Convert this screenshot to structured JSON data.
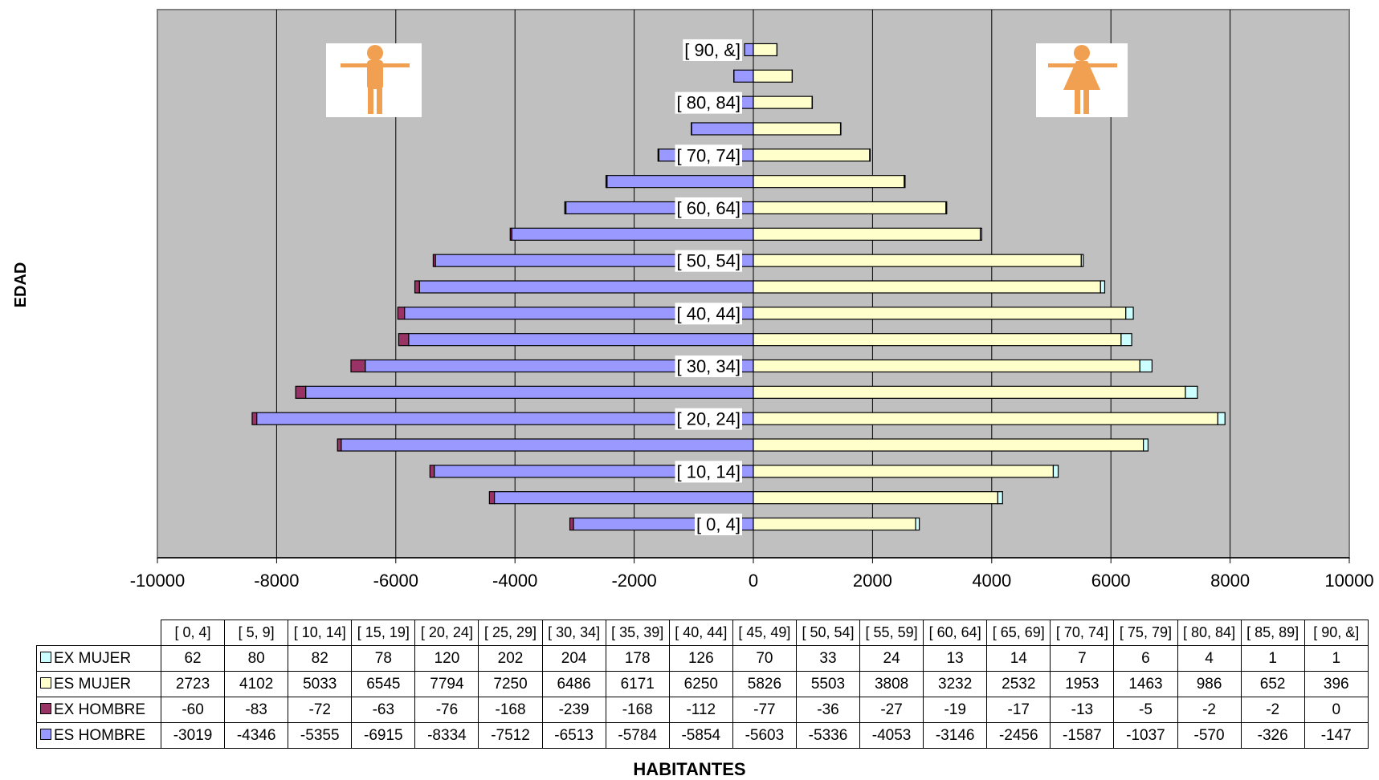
{
  "chart_data": {
    "type": "bar",
    "orientation": "horizontal",
    "stacked": true,
    "xlabel": "HABITANTES",
    "ylabel": "EDAD",
    "xlim": [
      -10000,
      10000
    ],
    "x_ticks": [
      "-10000",
      "-8000",
      "-6000",
      "-4000",
      "-2000",
      "0",
      "2000",
      "4000",
      "6000",
      "8000",
      "10000"
    ],
    "grid": true,
    "legend": "in data table, left",
    "categories": [
      "[ 0,  4]",
      "[ 5,  9]",
      "[ 10, 14]",
      "[ 15, 19]",
      "[ 20, 24]",
      "[ 25, 29]",
      "[ 30, 34]",
      "[ 35, 39]",
      "[ 40, 44]",
      "[ 45, 49]",
      "[ 50, 54]",
      "[ 55, 59]",
      "[ 60, 64]",
      "[ 65, 69]",
      "[ 70, 74]",
      "[ 75, 79]",
      "[ 80, 84]",
      "[ 85, 89]",
      "[ 90,  &]"
    ],
    "bar_labels": [
      "[  0,  4]",
      "",
      "[ 10, 14]",
      "",
      "[ 20, 24]",
      "",
      "[ 30, 34]",
      "",
      "[ 40, 44]",
      "",
      "[ 50, 54]",
      "",
      "[ 60, 64]",
      "",
      "[ 70, 74]",
      "",
      "[ 80, 84]",
      "",
      "[ 90,  &]"
    ],
    "series": [
      {
        "name": "EX MUJER",
        "color": "#ccffff",
        "values": [
          62,
          80,
          82,
          78,
          120,
          202,
          204,
          178,
          126,
          70,
          33,
          24,
          13,
          14,
          7,
          6,
          4,
          1,
          1
        ]
      },
      {
        "name": "ES MUJER",
        "color": "#ffffcc",
        "values": [
          2723,
          4102,
          5033,
          6545,
          7794,
          7250,
          6486,
          6171,
          6250,
          5826,
          5503,
          3808,
          3232,
          2532,
          1953,
          1463,
          986,
          652,
          396
        ]
      },
      {
        "name": "EX HOMBRE",
        "color": "#993366",
        "values": [
          -60,
          -83,
          -72,
          -63,
          -76,
          -168,
          -239,
          -168,
          -112,
          -77,
          -36,
          -27,
          -19,
          -17,
          -13,
          -5,
          -2,
          -2,
          0
        ]
      },
      {
        "name": "ES HOMBRE",
        "color": "#9999ff",
        "values": [
          -3019,
          -4346,
          -5355,
          -6915,
          -8334,
          -7512,
          -6513,
          -5784,
          -5854,
          -5603,
          -5336,
          -4053,
          -3146,
          -2456,
          -1587,
          -1037,
          -570,
          -326,
          -147
        ]
      }
    ]
  },
  "colors": {
    "plot_background": "#c0c0c0",
    "icon_color": "#f0a050"
  },
  "icons": {
    "male": "male-figure-icon",
    "female": "female-figure-icon"
  }
}
